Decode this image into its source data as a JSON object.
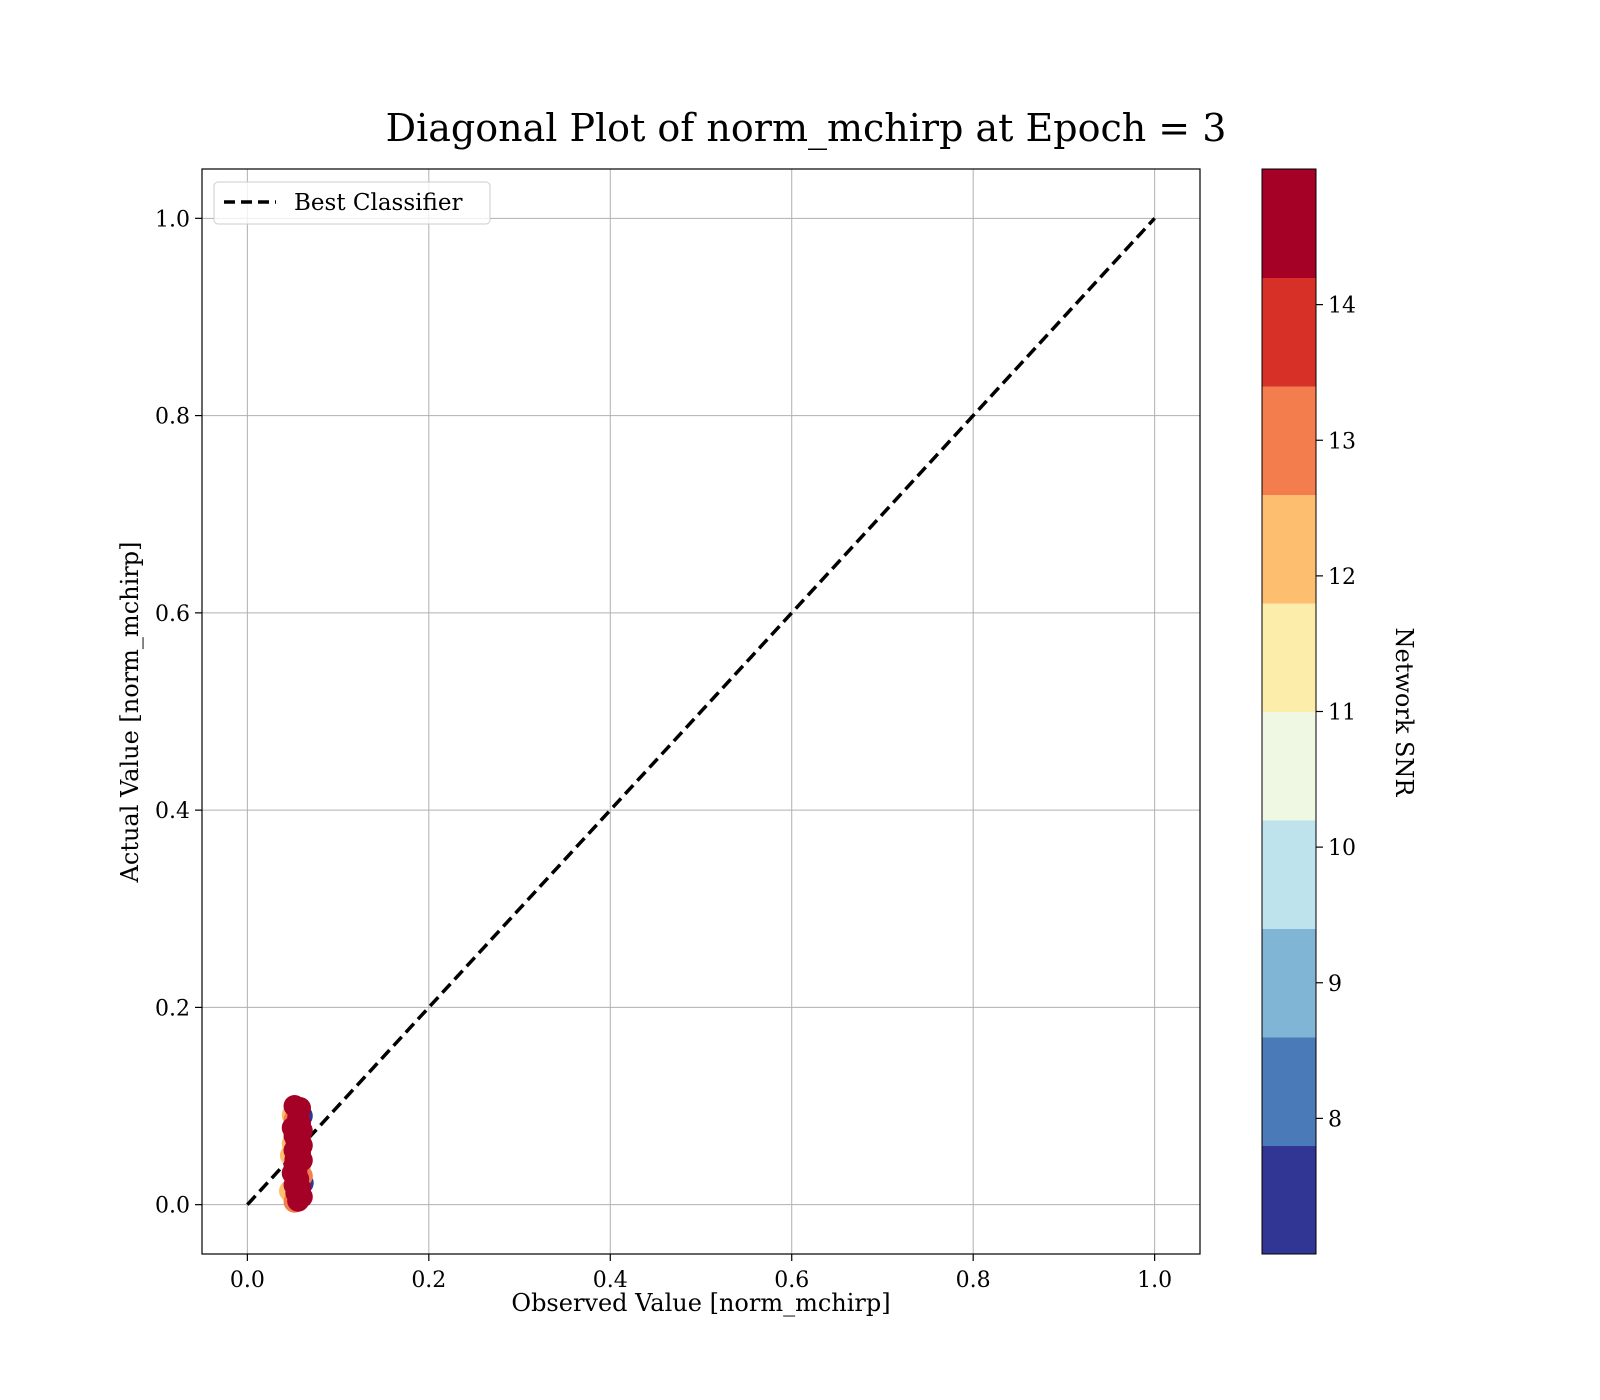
{
  "chart_data": {
    "type": "scatter",
    "title": "Diagonal Plot of norm_mchirp at Epoch = 3",
    "xlabel": "Observed Value [norm_mchirp]",
    "ylabel": "Actual Value [norm_mchirp]",
    "xlim": [
      -0.05,
      1.05
    ],
    "ylim": [
      -0.05,
      1.05
    ],
    "xticks": [
      "0.0",
      "0.2",
      "0.4",
      "0.6",
      "0.8",
      "1.0"
    ],
    "yticks": [
      "0.0",
      "0.2",
      "0.4",
      "0.6",
      "0.8",
      "1.0"
    ],
    "grid": true,
    "legend": {
      "placement": "top-left",
      "entries": [
        "Best Classifier"
      ]
    },
    "reference_line": {
      "name": "Best Classifier",
      "style": "dashed",
      "color": "#000000",
      "x": [
        0.0,
        1.0
      ],
      "y": [
        0.0,
        1.0
      ]
    },
    "colorbar": {
      "label": "Network SNR",
      "range": [
        7.0,
        15.0
      ],
      "ticks": [
        "8",
        "9",
        "10",
        "11",
        "12",
        "13",
        "14"
      ],
      "tick_values": [
        8,
        9,
        10,
        11,
        12,
        13,
        14
      ],
      "colors": [
        "#313695",
        "#4a7ab7",
        "#81b5d5",
        "#bee3ed",
        "#eef8e3",
        "#fdedaa",
        "#fdbe70",
        "#f47d4d",
        "#d73027",
        "#a50026"
      ]
    },
    "points": [
      {
        "x": 0.052,
        "y": 0.1,
        "snr": 14.8
      },
      {
        "x": 0.058,
        "y": 0.098,
        "snr": 14.6
      },
      {
        "x": 0.054,
        "y": 0.094,
        "snr": 12.2
      },
      {
        "x": 0.05,
        "y": 0.091,
        "snr": 12.0
      },
      {
        "x": 0.06,
        "y": 0.09,
        "snr": 7.3
      },
      {
        "x": 0.056,
        "y": 0.088,
        "snr": 14.5
      },
      {
        "x": 0.052,
        "y": 0.086,
        "snr": 13.1
      },
      {
        "x": 0.058,
        "y": 0.083,
        "snr": 14.9
      },
      {
        "x": 0.054,
        "y": 0.08,
        "snr": 9.6
      },
      {
        "x": 0.05,
        "y": 0.078,
        "snr": 14.3
      },
      {
        "x": 0.06,
        "y": 0.075,
        "snr": 14.7
      },
      {
        "x": 0.056,
        "y": 0.073,
        "snr": 11.4
      },
      {
        "x": 0.052,
        "y": 0.07,
        "snr": 14.4
      },
      {
        "x": 0.058,
        "y": 0.068,
        "snr": 13.8
      },
      {
        "x": 0.054,
        "y": 0.065,
        "snr": 14.9
      },
      {
        "x": 0.05,
        "y": 0.062,
        "snr": 12.4
      },
      {
        "x": 0.06,
        "y": 0.06,
        "snr": 14.6
      },
      {
        "x": 0.056,
        "y": 0.057,
        "snr": 8.2
      },
      {
        "x": 0.052,
        "y": 0.055,
        "snr": 14.8
      },
      {
        "x": 0.058,
        "y": 0.052,
        "snr": 14.2
      },
      {
        "x": 0.048,
        "y": 0.05,
        "snr": 11.8
      },
      {
        "x": 0.054,
        "y": 0.047,
        "snr": 14.9
      },
      {
        "x": 0.06,
        "y": 0.045,
        "snr": 14.5
      },
      {
        "x": 0.056,
        "y": 0.042,
        "snr": 13.5
      },
      {
        "x": 0.052,
        "y": 0.04,
        "snr": 14.7
      },
      {
        "x": 0.058,
        "y": 0.037,
        "snr": 10.2
      },
      {
        "x": 0.054,
        "y": 0.034,
        "snr": 14.6
      },
      {
        "x": 0.05,
        "y": 0.032,
        "snr": 14.9
      },
      {
        "x": 0.06,
        "y": 0.029,
        "snr": 12.6
      },
      {
        "x": 0.056,
        "y": 0.026,
        "snr": 14.4
      },
      {
        "x": 0.061,
        "y": 0.022,
        "snr": 7.6
      },
      {
        "x": 0.052,
        "y": 0.02,
        "snr": 14.8
      },
      {
        "x": 0.058,
        "y": 0.017,
        "snr": 14.3
      },
      {
        "x": 0.047,
        "y": 0.014,
        "snr": 12.1
      },
      {
        "x": 0.054,
        "y": 0.012,
        "snr": 14.7
      },
      {
        "x": 0.05,
        "y": 0.01,
        "snr": 11.2
      },
      {
        "x": 0.06,
        "y": 0.008,
        "snr": 14.9
      },
      {
        "x": 0.056,
        "y": 0.004,
        "snr": 14.5
      },
      {
        "x": 0.052,
        "y": 0.003,
        "snr": 13.2
      },
      {
        "x": 0.055,
        "y": 0.083,
        "snr": 14.9
      },
      {
        "x": 0.057,
        "y": 0.064,
        "snr": 14.8
      },
      {
        "x": 0.053,
        "y": 0.046,
        "snr": 14.6
      },
      {
        "x": 0.055,
        "y": 0.027,
        "snr": 14.9
      },
      {
        "x": 0.057,
        "y": 0.009,
        "snr": 14.7
      }
    ]
  }
}
